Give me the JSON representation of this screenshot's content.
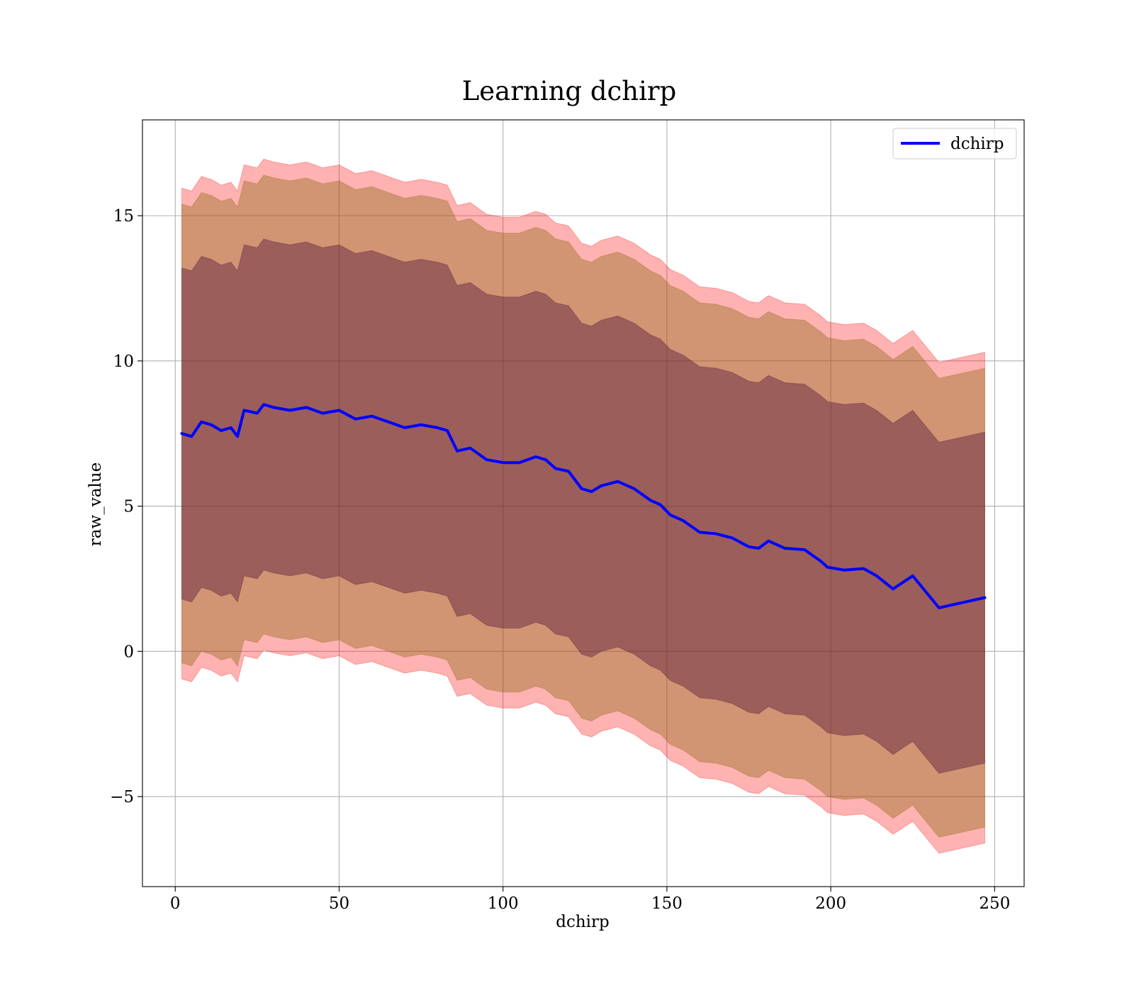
{
  "chart_data": {
    "type": "area",
    "title": "Learning dchirp",
    "xlabel": "dchirp",
    "ylabel": "raw_value",
    "xlim": [
      -10,
      259
    ],
    "ylim": [
      -8.1,
      18.3
    ],
    "xticks": [
      {
        "value": 0,
        "label": "0"
      },
      {
        "value": 50,
        "label": "50"
      },
      {
        "value": 100,
        "label": "100"
      },
      {
        "value": 150,
        "label": "150"
      },
      {
        "value": 200,
        "label": "200"
      },
      {
        "value": 250,
        "label": "250"
      }
    ],
    "yticks": [
      {
        "value": -5,
        "label": "−5"
      },
      {
        "value": 0,
        "label": "0"
      },
      {
        "value": 5,
        "label": "5"
      },
      {
        "value": 10,
        "label": "10"
      },
      {
        "value": 15,
        "label": "15"
      }
    ],
    "grid": true,
    "legend": {
      "position": "top-right",
      "entries": [
        "dchirp"
      ]
    },
    "colors": {
      "line": "#0000ff",
      "outer_band": "#ff0000",
      "middle_band": "#8b6914",
      "inner_band": "#4b0c38"
    },
    "series": [
      {
        "name": "dchirp",
        "x": [
          2,
          5,
          8,
          11,
          14,
          17,
          19,
          21,
          25,
          27,
          30,
          35,
          40,
          45,
          50,
          55,
          60,
          65,
          70,
          75,
          80,
          83,
          86,
          90,
          95,
          100,
          105,
          110,
          113,
          116,
          120,
          124,
          127,
          130,
          135,
          140,
          145,
          148,
          151,
          155,
          160,
          165,
          170,
          175,
          178,
          181,
          186,
          192,
          197,
          199,
          204,
          210,
          214,
          219,
          225,
          233,
          247
        ],
        "mean": [
          7.5,
          7.4,
          7.9,
          7.8,
          7.6,
          7.7,
          7.4,
          8.3,
          8.2,
          8.5,
          8.4,
          8.3,
          8.4,
          8.2,
          8.3,
          8.0,
          8.1,
          7.9,
          7.7,
          7.8,
          7.7,
          7.6,
          6.9,
          7.0,
          6.6,
          6.5,
          6.5,
          6.7,
          6.6,
          6.3,
          6.2,
          5.6,
          5.5,
          5.7,
          5.85,
          5.6,
          5.2,
          5.05,
          4.7,
          4.5,
          4.1,
          4.05,
          3.9,
          3.6,
          3.55,
          3.8,
          3.55,
          3.5,
          3.1,
          2.9,
          2.8,
          2.85,
          2.6,
          2.15,
          2.6,
          1.5,
          1.85
        ],
        "inner_band": {
          "low_offset": -5.7,
          "high_offset": 5.7
        },
        "middle_band": {
          "low_offset": -7.9,
          "high_offset": 7.9
        },
        "outer_band": {
          "low_offset": -8.45,
          "high_offset": 8.45
        }
      }
    ]
  }
}
